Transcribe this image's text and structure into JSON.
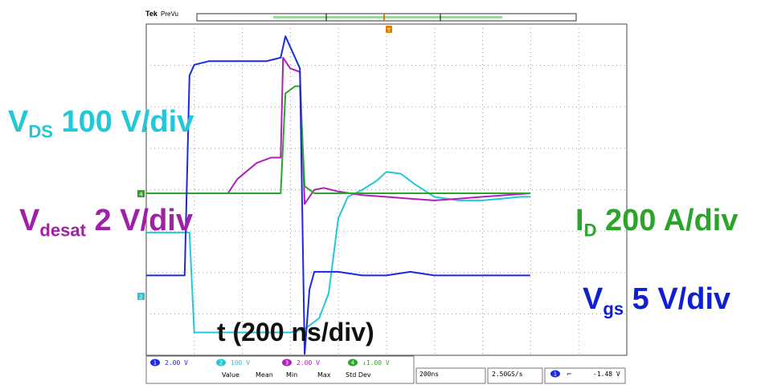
{
  "header": {
    "brand": "Tek",
    "mode": "PreVu"
  },
  "labels": {
    "vds": {
      "main": "V",
      "sub": "DS",
      "rest": " 100 V/div"
    },
    "vdesat": {
      "main": "V",
      "sub": "desat",
      "rest": " 2 V/div"
    },
    "id": {
      "main": "I",
      "sub": "D",
      "rest": " 200 A/div"
    },
    "vgs": {
      "main": "V",
      "sub": "gs",
      "rest": " 5 V/div"
    },
    "timebase": "t (200 ns/div)"
  },
  "status_bar": {
    "channels": [
      {
        "num": "1",
        "scale": "2.00 V",
        "color": "#1a2ae0"
      },
      {
        "num": "2",
        "scale": "100 V",
        "color": "#22c8d8"
      },
      {
        "num": "3",
        "scale": "2.00 V",
        "color": "#b020b8"
      },
      {
        "num": "4",
        "scale": "↓1.00 V",
        "color": "#2aa52a"
      }
    ],
    "measure_headers": [
      "Value",
      "Mean",
      "Min",
      "Max",
      "Std Dev"
    ],
    "timebase": "200ns",
    "sample_rate": "2.50GS/s",
    "trigger_channel": "1",
    "trigger_slope": "⌐",
    "trigger_level": "-1.48 V"
  },
  "chart_data": {
    "type": "line",
    "title": "",
    "xlabel": "t (200 ns/div)",
    "ylabel": "",
    "x_unit": "ns",
    "xlim": [
      0,
      2000
    ],
    "grid": true,
    "series": [
      {
        "name": "VDS",
        "color": "#22c8d8",
        "x": [
          0,
          160,
          180,
          200,
          600,
          660,
          720,
          760,
          800,
          840,
          900,
          960,
          1000,
          1060,
          1120,
          1200,
          1300,
          1400,
          1480,
          1560,
          1600
        ],
        "y": [
          -1.1,
          -1.1,
          -1.1,
          -3.9,
          -3.9,
          -3.8,
          -3.5,
          -2.8,
          -0.7,
          -0.1,
          0.1,
          0.35,
          0.6,
          0.55,
          0.25,
          -0.1,
          -0.2,
          -0.2,
          -0.15,
          -0.1,
          -0.1
        ]
      },
      {
        "name": "Vdesat",
        "color": "#b020b8",
        "x": [
          0,
          160,
          260,
          340,
          380,
          460,
          520,
          560,
          570,
          600,
          640,
          660,
          700,
          740,
          800,
          900,
          1000,
          1100,
          1200,
          1300,
          1400,
          1500,
          1600
        ],
        "y": [
          0.0,
          0.0,
          0.0,
          0.0,
          0.4,
          0.85,
          1.0,
          1.0,
          3.8,
          3.5,
          3.4,
          -0.3,
          0.1,
          0.15,
          0.05,
          -0.05,
          -0.1,
          -0.15,
          -0.2,
          -0.15,
          -0.1,
          -0.05,
          0.0
        ]
      },
      {
        "name": "ID",
        "color": "#2aa52a",
        "x": [
          0,
          160,
          560,
          580,
          620,
          640,
          660,
          700,
          760,
          840,
          900,
          1000,
          1100,
          1200,
          1300,
          1400,
          1500,
          1600
        ],
        "y": [
          0.0,
          0.0,
          0.0,
          2.8,
          3.0,
          3.0,
          0.2,
          0.0,
          0.0,
          0.0,
          0.0,
          0.0,
          0.0,
          0.0,
          0.0,
          0.0,
          0.0,
          0.0
        ]
      },
      {
        "name": "Vgs",
        "color": "#1a2ae0",
        "x": [
          0,
          160,
          180,
          200,
          260,
          300,
          400,
          500,
          560,
          580,
          620,
          640,
          660,
          680,
          700,
          760,
          800,
          900,
          1000,
          1100,
          1200,
          1300,
          1400,
          1500,
          1600
        ],
        "y": [
          -2.3,
          -2.3,
          3.3,
          3.6,
          3.7,
          3.7,
          3.7,
          3.7,
          3.8,
          4.4,
          3.8,
          3.5,
          -4.5,
          -2.7,
          -2.2,
          -2.2,
          -2.2,
          -2.3,
          -2.3,
          -2.2,
          -2.3,
          -2.3,
          -2.3,
          -2.3,
          -2.3
        ]
      }
    ]
  }
}
